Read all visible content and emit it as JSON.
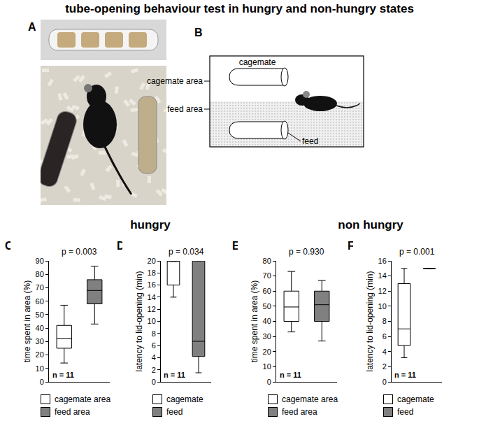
{
  "title": "tube-opening behaviour test in hungry and non-hungry states",
  "panel_a": {
    "label": "A"
  },
  "panel_b": {
    "label": "B",
    "cagemate": "cagemate",
    "cagemate_area": "cagemate area",
    "feed_area": "feed area",
    "feed": "feed"
  },
  "conditions": [
    "hungry",
    "non hungry"
  ],
  "chart_data": [
    {
      "panel": "C",
      "type": "box",
      "condition": "hungry",
      "ylabel": "time spent in area (%)",
      "p_text": "p = 0.003",
      "n_text": "n = 11",
      "ylim": [
        0,
        90
      ],
      "yticks": [
        0,
        10,
        20,
        30,
        40,
        50,
        60,
        70,
        80,
        90
      ],
      "grid": false,
      "tick_labels": "y",
      "legend": "bottom",
      "series": [
        {
          "name": "cagemate area",
          "color": "#ffffff",
          "min": 14,
          "q1": 25,
          "median": 32,
          "q3": 42,
          "max": 57
        },
        {
          "name": "feed area",
          "color": "#808080",
          "min": 43,
          "q1": 58,
          "median": 68,
          "q3": 76,
          "max": 86
        }
      ]
    },
    {
      "panel": "D",
      "type": "box",
      "condition": "hungry",
      "ylabel": "latency to lid-opening (min)",
      "p_text": "p = 0.034",
      "n_text": "n = 11",
      "ylim": [
        0,
        20
      ],
      "yticks": [
        0,
        2,
        4,
        6,
        8,
        10,
        12,
        14,
        16,
        18,
        20
      ],
      "grid": false,
      "tick_labels": "y",
      "legend": "bottom",
      "series": [
        {
          "name": "cagemate",
          "color": "#ffffff",
          "min": 14,
          "q1": 16,
          "median": 20,
          "q3": 20,
          "max": 20
        },
        {
          "name": "feed",
          "color": "#808080",
          "min": 1.5,
          "q1": 4.2,
          "median": 6.7,
          "q3": 20,
          "max": 20
        }
      ]
    },
    {
      "panel": "E",
      "type": "box",
      "condition": "non hungry",
      "ylabel": "time spent in area (%)",
      "p_text": "p = 0.930",
      "n_text": "n = 11",
      "ylim": [
        0,
        80
      ],
      "yticks": [
        0,
        10,
        20,
        30,
        40,
        50,
        60,
        70,
        80
      ],
      "grid": false,
      "tick_labels": "y",
      "legend": "bottom",
      "series": [
        {
          "name": "cagemate area",
          "color": "#ffffff",
          "min": 33,
          "q1": 40,
          "median": 49.5,
          "q3": 60,
          "max": 73
        },
        {
          "name": "feed area",
          "color": "#808080",
          "min": 27,
          "q1": 40,
          "median": 51,
          "q3": 60,
          "max": 67
        }
      ]
    },
    {
      "panel": "F",
      "type": "box",
      "condition": "non hungry",
      "ylabel": "latency to lid-opening (min)",
      "p_text": "p = 0.001",
      "n_text": "n = 11",
      "ylim": [
        0,
        16
      ],
      "yticks": [
        0,
        2,
        4,
        6,
        8,
        10,
        12,
        14,
        16
      ],
      "grid": false,
      "tick_labels": "y",
      "legend": "bottom",
      "series": [
        {
          "name": "cagemate",
          "color": "#ffffff",
          "min": 3.2,
          "q1": 4.8,
          "median": 7,
          "q3": 13,
          "max": 15
        },
        {
          "name": "feed",
          "color": "#808080",
          "min": 15,
          "q1": 15,
          "median": 15,
          "q3": 15,
          "max": 15
        }
      ]
    }
  ]
}
